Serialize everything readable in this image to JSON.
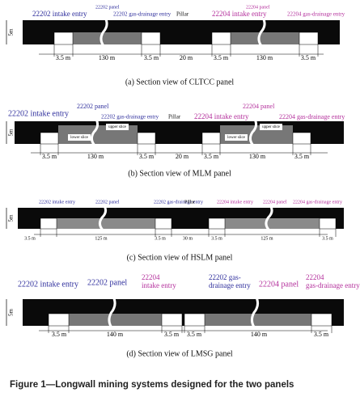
{
  "panels": [
    {
      "height": "5m",
      "labels": [
        "22202 intake entry",
        "22202 panel",
        "22202 gas-drainage entry",
        "Pillar",
        "22204 intake entry",
        "22204 panel",
        "22204 gas-drainage entry"
      ],
      "dimensions": [
        "3.5 m",
        "130 m",
        "3.5 m",
        "20 m",
        "3.5 m",
        "130 m",
        "3.5 m"
      ],
      "caption": "(a) Section view of CLTCC panel"
    },
    {
      "height": "5m",
      "labels": [
        "22202 intake entry",
        "22202 panel",
        "22202 gas-drainage entry",
        "Pillar",
        "22204 intake entry",
        "22204 panel",
        "22204 gas-drainage entry"
      ],
      "slices": [
        "upper slice",
        "lower slice",
        "upper slice",
        "lower slice"
      ],
      "dimensions": [
        "3.5 m",
        "130 m",
        "3.5 m",
        "20 m",
        "3.5 m",
        "130 m",
        "3.5 m"
      ],
      "caption": "(b) Section view of MLM panel"
    },
    {
      "height": "5m",
      "labels": [
        "22202 intake entry",
        "22202 panel",
        "22202 gas-drainage entry",
        "Pillar",
        "22204 intake entry",
        "22204 panel",
        "22204 gas-drainage entry"
      ],
      "dimensions": [
        "3.5 m",
        "125 m",
        "3.5 m",
        "30 m",
        "3.5 m",
        "125 m",
        "3.5 m"
      ],
      "caption": "(c) Section view of HSLM panel"
    },
    {
      "height": "5m",
      "labels": [
        "22202 intake entry",
        "22202 panel",
        [
          "22204",
          "intake entry"
        ],
        [
          "22202 gas-",
          "drainage entry"
        ],
        "22204 panel",
        [
          "22204",
          "gas-drainage entry"
        ]
      ],
      "dimensions": [
        "3.5 m",
        "140 m",
        "3.5 m",
        "3.5 m",
        "140 m",
        "3.5 m"
      ],
      "caption": "(d) Section view of LMSG panel"
    }
  ],
  "figure_caption": "Figure 1—Longwall mining systems designed for the two panels"
}
